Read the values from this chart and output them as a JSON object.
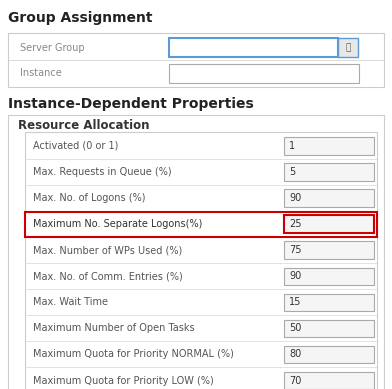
{
  "bg_color": "#ffffff",
  "title_group": "Group Assignment",
  "title_instance": "Instance-Dependent Properties",
  "title_resource": "Resource Allocation",
  "group_rows": [
    {
      "label": "Server Group",
      "value": "",
      "highlighted": false
    },
    {
      "label": "Instance",
      "value": "",
      "highlighted": false
    }
  ],
  "rows": [
    {
      "label": "Activated (0 or 1)",
      "value": "1",
      "highlighted": false
    },
    {
      "label": "Max. Requests in Queue (%)",
      "value": "5",
      "highlighted": false
    },
    {
      "label": "Max. No. of Logons (%)",
      "value": "90",
      "highlighted": false
    },
    {
      "label": "Maximum No. Separate Logons(%)",
      "value": "25",
      "highlighted": true
    },
    {
      "label": "Max. Number of WPs Used (%)",
      "value": "75",
      "highlighted": false
    },
    {
      "label": "Max. No. of Comm. Entries (%)",
      "value": "90",
      "highlighted": false
    },
    {
      "label": "Max. Wait Time",
      "value": "15",
      "highlighted": false
    },
    {
      "label": "Maximum Number of Open Tasks",
      "value": "50",
      "highlighted": false
    },
    {
      "label": "Maximum Quota for Priority NORMAL (%)",
      "value": "80",
      "highlighted": false
    },
    {
      "label": "Maximum Quota for Priority LOW (%)",
      "value": "70",
      "highlighted": false
    }
  ],
  "text_color": "#444444",
  "highlight_border": "#cc0000",
  "input_border": "#aaaaaa",
  "input_bg": "#f5f5f5",
  "server_group_border": "#5b9bd5",
  "outer_border": "#cccccc",
  "label_color_dim": "#888888",
  "font_size_title": 9,
  "font_size_label": 7,
  "font_size_section": 8
}
